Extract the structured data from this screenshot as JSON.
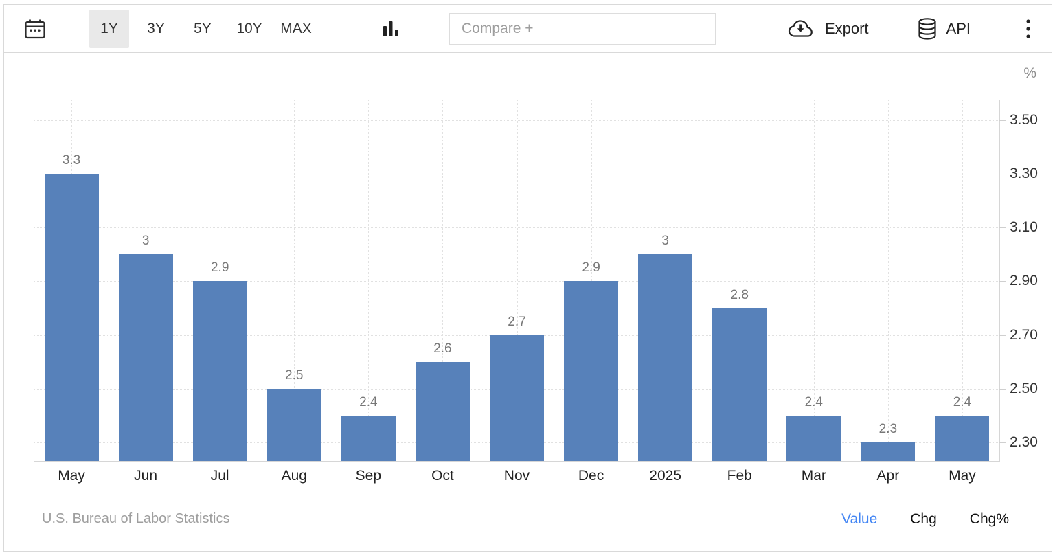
{
  "toolbar": {
    "icons": {
      "calendar": "date-range-calendar",
      "chart_type": "column-chart",
      "export": "cloud-download",
      "api": "database",
      "menu": "kebab-vertical-dots"
    },
    "range_buttons": [
      {
        "label": "1Y",
        "active": true
      },
      {
        "label": "3Y",
        "active": false
      },
      {
        "label": "5Y",
        "active": false
      },
      {
        "label": "10Y",
        "active": false
      },
      {
        "label": "MAX",
        "active": false
      }
    ],
    "compare_placeholder": "Compare +",
    "export_label": "Export",
    "api_label": "API"
  },
  "chart_data": {
    "type": "bar",
    "title": "",
    "xlabel": "",
    "ylabel": "%",
    "categories": [
      "May",
      "Jun",
      "Jul",
      "Aug",
      "Sep",
      "Oct",
      "Nov",
      "Dec",
      "2025",
      "Feb",
      "Mar",
      "Apr",
      "May"
    ],
    "values": [
      3.3,
      3,
      2.9,
      2.5,
      2.4,
      2.6,
      2.7,
      2.9,
      3,
      2.8,
      2.4,
      2.3,
      2.4
    ],
    "value_labels": [
      "3.3",
      "3",
      "2.9",
      "2.5",
      "2.4",
      "2.6",
      "2.7",
      "2.9",
      "3",
      "2.8",
      "2.4",
      "2.3",
      "2.4"
    ],
    "ylim": [
      2.23,
      3.575
    ],
    "yticks": [
      "2.30",
      "2.50",
      "2.70",
      "2.90",
      "3.10",
      "3.30",
      "3.50"
    ],
    "grid": true,
    "legend": "none",
    "y_axis_position": "right",
    "bar_color": "#5781BA"
  },
  "footer": {
    "source": "U.S. Bureau of Labor Statistics",
    "links": [
      {
        "label": "Value",
        "active": true
      },
      {
        "label": "Chg",
        "active": false
      },
      {
        "label": "Chg%",
        "active": false
      }
    ]
  },
  "colors": {
    "bar": "#5781BA",
    "active_link": "#4285F4",
    "active_button_bg": "#E9E9E9",
    "grid": "#E1E1E1",
    "axis_labels": "#333333",
    "value_labels": "#777777",
    "muted_text": "#9E9E9E"
  }
}
